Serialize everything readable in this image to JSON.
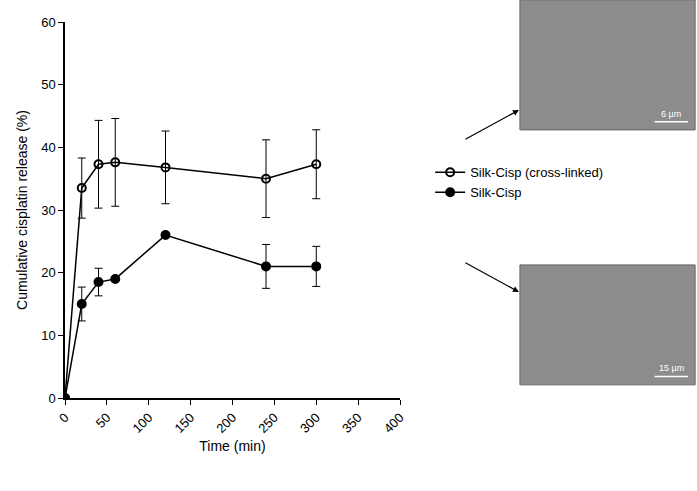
{
  "chart_data": {
    "type": "line",
    "x_label": "Time (min)",
    "y_label": "Cumulative cisplatin release (%)",
    "xlim": [
      0,
      400
    ],
    "xticks": [
      0,
      50,
      100,
      150,
      200,
      250,
      300,
      350,
      400
    ],
    "ylim": [
      0,
      60
    ],
    "yticks": [
      0,
      10,
      20,
      30,
      40,
      50,
      60
    ],
    "grid": false,
    "legend": "right",
    "series": [
      {
        "name": "Silk-Cisp (cross-linked)",
        "color": "#000000",
        "marker": "circle-open",
        "x": [
          0,
          20,
          40,
          60,
          120,
          240,
          300
        ],
        "values": [
          0,
          33.5,
          37.3,
          37.6,
          36.8,
          35.0,
          37.3
        ],
        "error": [
          0,
          4.8,
          7.0,
          7.0,
          5.8,
          6.2,
          5.5
        ]
      },
      {
        "name": "Silk-Cisp",
        "color": "#000000",
        "marker": "circle",
        "x": [
          0,
          20,
          40,
          60,
          120,
          240,
          300
        ],
        "values": [
          0,
          15.0,
          18.5,
          19.0,
          26.0,
          21.0,
          21.0
        ],
        "error": [
          0,
          2.7,
          2.2,
          0,
          0,
          3.5,
          3.2
        ]
      }
    ],
    "annotations": [
      "6 µm",
      "15 µm"
    ]
  }
}
